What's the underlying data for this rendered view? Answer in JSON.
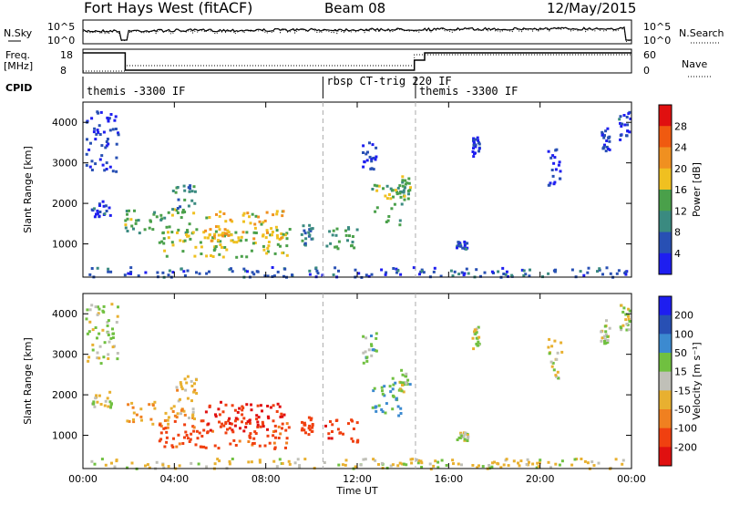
{
  "header": {
    "station": "Fort Hays West (fitACF)",
    "beam": "Beam 08",
    "date": "12/May/2015"
  },
  "panels": {
    "sky": {
      "left_label": "N.Sky",
      "right_label": "N.Search",
      "left_ticks": [
        "10^5",
        "10^0"
      ],
      "right_ticks": [
        "10^5",
        "10^0"
      ]
    },
    "freq": {
      "left_label": "Freq.",
      "left_unit": "[MHz]",
      "right_label": "Nave",
      "left_ticks": [
        "18",
        "8"
      ],
      "right_ticks": [
        "60",
        "0"
      ]
    },
    "cpid": {
      "label": "CPID",
      "segments": [
        {
          "text": "themis -3300 IF",
          "start_h": 0.0
        },
        {
          "text": "rbsp CT-trig 220 IF",
          "start_h": 10.5
        },
        {
          "text": "themis -3300 IF",
          "start_h": 14.55
        }
      ]
    }
  },
  "chart_data": [
    {
      "type": "heatmap",
      "name": "power",
      "xlabel": "",
      "ylabel": "Slant Range [km]",
      "xlim": [
        0,
        24
      ],
      "ylim": [
        180,
        4500
      ],
      "yticks": [
        "1000",
        "2000",
        "3000",
        "4000"
      ],
      "colorbar": {
        "label": "Power [dB]",
        "ticks": [
          "4",
          "8",
          "12",
          "16",
          "20",
          "24",
          "28"
        ],
        "min": 0,
        "max": 32
      },
      "regions": [
        {
          "t0": 0.1,
          "t1": 1.5,
          "r0": 2800,
          "r1": 4300,
          "level": 4
        },
        {
          "t0": 0.3,
          "t1": 1.2,
          "r0": 1700,
          "r1": 2100,
          "level": 5
        },
        {
          "t0": 1.8,
          "t1": 4.9,
          "r0": 1300,
          "r1": 1900,
          "level": 14
        },
        {
          "t0": 3.9,
          "t1": 5.0,
          "r0": 1900,
          "r1": 2500,
          "level": 10
        },
        {
          "t0": 3.3,
          "t1": 9.0,
          "r0": 700,
          "r1": 1400,
          "level": 16
        },
        {
          "t0": 5.3,
          "t1": 8.8,
          "r0": 1100,
          "r1": 1850,
          "level": 19
        },
        {
          "t0": 9.5,
          "t1": 10.0,
          "r0": 1000,
          "r1": 1500,
          "level": 9
        },
        {
          "t0": 10.5,
          "t1": 12.0,
          "r0": 850,
          "r1": 1450,
          "level": 12
        },
        {
          "t0": 12.6,
          "t1": 14.0,
          "r0": 1500,
          "r1": 2500,
          "level": 14
        },
        {
          "t0": 12.2,
          "t1": 12.8,
          "r0": 2800,
          "r1": 3600,
          "level": 4
        },
        {
          "t0": 13.8,
          "t1": 14.3,
          "r0": 2100,
          "r1": 2700,
          "level": 13
        },
        {
          "t0": 16.3,
          "t1": 16.8,
          "r0": 900,
          "r1": 1100,
          "level": 5
        },
        {
          "t0": 17.0,
          "t1": 17.3,
          "r0": 3100,
          "r1": 3700,
          "level": 5
        },
        {
          "t0": 20.3,
          "t1": 20.9,
          "r0": 2400,
          "r1": 3400,
          "level": 4
        },
        {
          "t0": 22.6,
          "t1": 23.0,
          "r0": 3300,
          "r1": 3900,
          "level": 4
        },
        {
          "t0": 23.4,
          "t1": 23.9,
          "r0": 3600,
          "r1": 4300,
          "level": 5
        },
        {
          "t0": 0.2,
          "t1": 23.9,
          "r0": 200,
          "r1": 450,
          "level": 6
        }
      ]
    },
    {
      "type": "heatmap",
      "name": "velocity",
      "xlabel": "Time UT",
      "ylabel": "Slant Range [km]",
      "xlim": [
        0,
        24
      ],
      "ylim": [
        180,
        4500
      ],
      "xticks": [
        "00:00",
        "04:00",
        "08:00",
        "12:00",
        "16:00",
        "20:00",
        "00:00"
      ],
      "yticks": [
        "1000",
        "2000",
        "3000",
        "4000"
      ],
      "colorbar": {
        "label": "Velocity [m s⁻¹]",
        "ticks": [
          "200",
          "100",
          "50",
          "15",
          "-15",
          "-50",
          "-100",
          "-200"
        ],
        "min": -250,
        "max": 250
      },
      "regions": [
        {
          "t0": 0.1,
          "t1": 1.5,
          "r0": 2800,
          "r1": 4300,
          "level": 0
        },
        {
          "t0": 0.3,
          "t1": 1.2,
          "r0": 1700,
          "r1": 2100,
          "level": -10
        },
        {
          "t0": 1.8,
          "t1": 4.9,
          "r0": 1300,
          "r1": 1900,
          "level": -40
        },
        {
          "t0": 3.9,
          "t1": 5.0,
          "r0": 1900,
          "r1": 2500,
          "level": -30
        },
        {
          "t0": 3.3,
          "t1": 9.0,
          "r0": 700,
          "r1": 1400,
          "level": -120
        },
        {
          "t0": 5.3,
          "t1": 8.8,
          "r0": 1100,
          "r1": 1850,
          "level": -210
        },
        {
          "t0": 9.5,
          "t1": 10.0,
          "r0": 1000,
          "r1": 1500,
          "level": -150
        },
        {
          "t0": 10.5,
          "t1": 12.0,
          "r0": 850,
          "r1": 1450,
          "level": -180
        },
        {
          "t0": 12.6,
          "t1": 14.0,
          "r0": 1500,
          "r1": 2500,
          "level": 30
        },
        {
          "t0": 12.2,
          "t1": 12.8,
          "r0": 2800,
          "r1": 3600,
          "level": 10
        },
        {
          "t0": 13.8,
          "t1": 14.3,
          "r0": 2100,
          "r1": 2700,
          "level": 5
        },
        {
          "t0": 16.3,
          "t1": 16.8,
          "r0": 900,
          "r1": 1100,
          "level": 0
        },
        {
          "t0": 17.0,
          "t1": 17.3,
          "r0": 3100,
          "r1": 3700,
          "level": 0
        },
        {
          "t0": 20.3,
          "t1": 20.9,
          "r0": 2400,
          "r1": 3400,
          "level": -10
        },
        {
          "t0": 22.6,
          "t1": 23.0,
          "r0": 3300,
          "r1": 3900,
          "level": 0
        },
        {
          "t0": 23.4,
          "t1": 23.9,
          "r0": 3600,
          "r1": 4300,
          "level": 0
        },
        {
          "t0": 0.2,
          "t1": 23.9,
          "r0": 200,
          "r1": 450,
          "level": -20
        }
      ]
    }
  ],
  "colors": {
    "power": [
      "#1e1ef0",
      "#2850b4",
      "#3a8a80",
      "#4aa04a",
      "#f0c020",
      "#f09020",
      "#f05a10",
      "#e01010"
    ],
    "velocity": [
      "#1e1ef0",
      "#2850b4",
      "#3c8ad0",
      "#70c040",
      "#c0c0b8",
      "#e8b030",
      "#f08020",
      "#f04010",
      "#e01010"
    ],
    "ground": "#b8b8b8"
  }
}
